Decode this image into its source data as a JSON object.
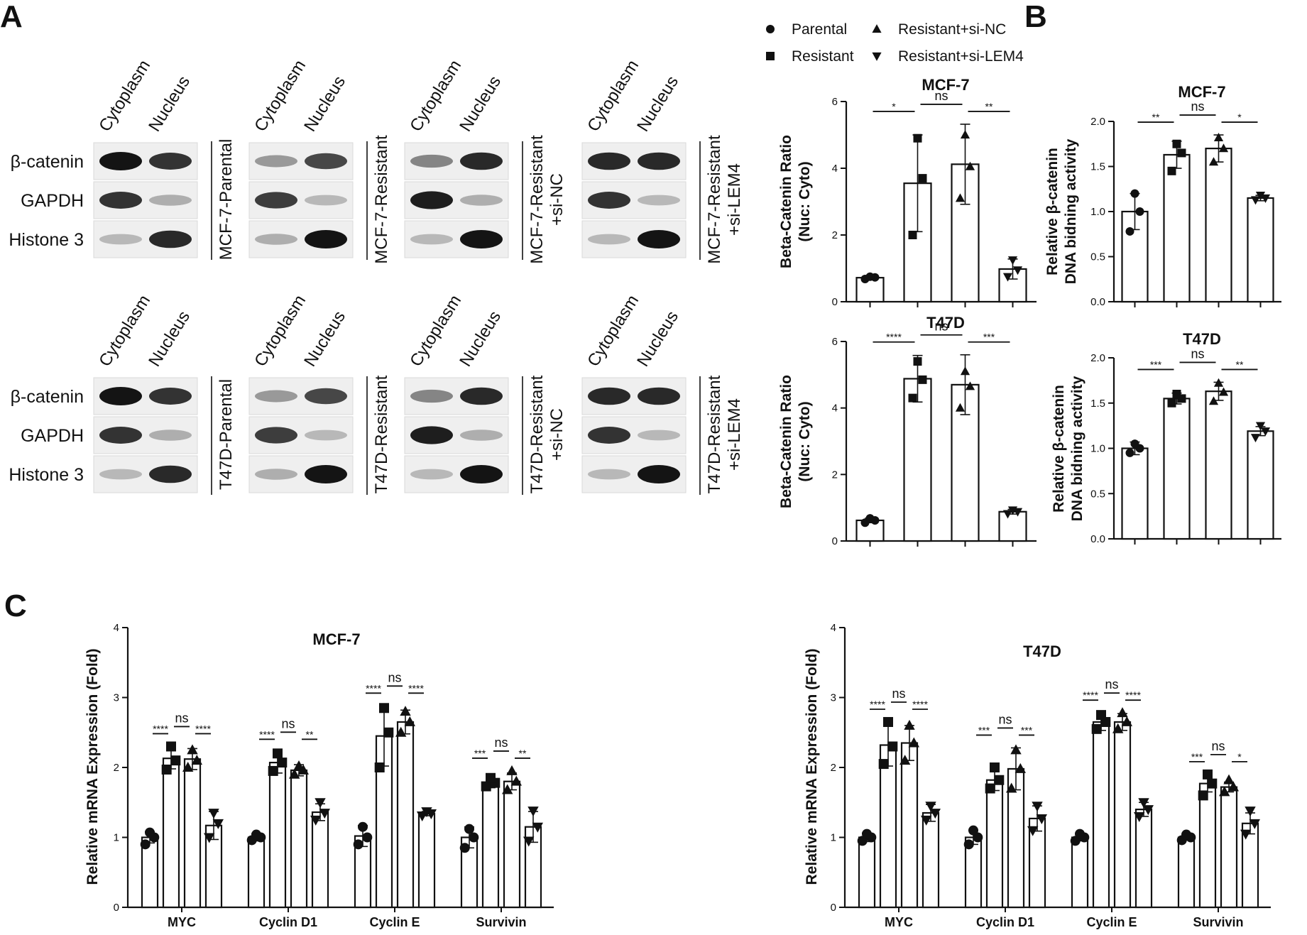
{
  "panels": {
    "a": "A",
    "b": "B",
    "c": "C"
  },
  "blot": {
    "lanes": [
      "Cytoplasm",
      "Nucleus"
    ],
    "rows": [
      "β-catenin",
      "GAPDH",
      "Histone 3"
    ],
    "mcf7_conditions": [
      "MCF-7-Parental",
      "MCF-7-Resistant",
      "MCF-7-Resistant\n+si-NC",
      "MCF-7-Resistant\n+si-LEM4"
    ],
    "t47d_conditions": [
      "T47D-Parental",
      "T47D-Resistant",
      "T47D-Resistant\n+si-NC",
      "T47D-Resistant\n+si-LEM4"
    ]
  },
  "legend": [
    {
      "label": "Parental",
      "marker": "circle"
    },
    {
      "label": "Resistant+si-NC",
      "marker": "triangle-up"
    },
    {
      "label": "Resistant",
      "marker": "square"
    },
    {
      "label": "Resistant+si-LEM4",
      "marker": "triangle-down"
    }
  ],
  "chart_data": [
    {
      "type": "bar",
      "id": "a_mcf7",
      "title": "MCF-7",
      "ylabel": "Beta-Catenin Ratio\n(Nuc: Cyto)",
      "ylim": [
        0,
        6
      ],
      "yticks": [
        "0",
        "2",
        "4",
        "6"
      ],
      "groups": [
        {
          "category": "",
          "values": [
            0.72,
            3.55,
            4.12,
            0.98
          ],
          "errors": [
            0.05,
            1.45,
            1.2,
            0.3
          ],
          "points": [
            [
              0.68,
              0.73,
              0.75
            ],
            [
              2.0,
              3.7,
              4.9
            ],
            [
              3.1,
              4.05,
              5.0
            ],
            [
              0.75,
              0.95,
              1.25
            ]
          ],
          "sig": [
            "*",
            "ns",
            "**"
          ]
        }
      ]
    },
    {
      "type": "bar",
      "id": "b_mcf7",
      "title": "MCF-7",
      "ylabel": "Relative β-catenin\nDNA bidning activity",
      "ylim": [
        0,
        2.0
      ],
      "yticks": [
        "0.0",
        "0.5",
        "1.0",
        "1.5",
        "2.0"
      ],
      "groups": [
        {
          "category": "",
          "values": [
            1.0,
            1.63,
            1.7,
            1.15
          ],
          "errors": [
            0.2,
            0.15,
            0.15,
            0.03
          ],
          "points": [
            [
              0.78,
              1.0,
              1.2
            ],
            [
              1.45,
              1.65,
              1.75
            ],
            [
              1.55,
              1.7,
              1.82
            ],
            [
              1.13,
              1.15,
              1.18
            ]
          ],
          "sig": [
            "**",
            "ns",
            "*"
          ]
        }
      ]
    },
    {
      "type": "bar",
      "id": "a_t47d",
      "title": "T47D",
      "ylabel": "Beta-Catenin Ratio\n(Nuc: Cyto)",
      "ylim": [
        0,
        6
      ],
      "yticks": [
        "0",
        "2",
        "4",
        "6"
      ],
      "groups": [
        {
          "category": "",
          "values": [
            0.62,
            4.88,
            4.7,
            0.88
          ],
          "errors": [
            0.07,
            0.7,
            0.9,
            0.07
          ],
          "points": [
            [
              0.55,
              0.62,
              0.68
            ],
            [
              4.3,
              4.85,
              5.4
            ],
            [
              4.0,
              4.65,
              5.1
            ],
            [
              0.82,
              0.88,
              0.93
            ]
          ],
          "sig": [
            "****",
            "ns",
            "***"
          ]
        }
      ]
    },
    {
      "type": "bar",
      "id": "b_t47d",
      "title": "T47D",
      "ylabel": "Relative β-catenin\nDNA bidning activity",
      "ylim": [
        0,
        2.0
      ],
      "yticks": [
        "0.0",
        "0.5",
        "1.0",
        "1.5",
        "2.0"
      ],
      "groups": [
        {
          "category": "",
          "values": [
            1.0,
            1.55,
            1.63,
            1.19
          ],
          "errors": [
            0.07,
            0.06,
            0.1,
            0.05
          ],
          "points": [
            [
              0.95,
              1.0,
              1.05
            ],
            [
              1.5,
              1.55,
              1.6
            ],
            [
              1.52,
              1.62,
              1.72
            ],
            [
              1.12,
              1.19,
              1.25
            ]
          ],
          "sig": [
            "***",
            "ns",
            "**"
          ]
        }
      ]
    },
    {
      "type": "bar",
      "id": "c_mcf7",
      "title": "MCF-7",
      "ylabel": "Relative mRNA Expression (Fold)",
      "ylim": [
        0,
        4
      ],
      "yticks": [
        "0",
        "1",
        "2",
        "3",
        "4"
      ],
      "groups": [
        {
          "category": "MYC",
          "values": [
            1.0,
            2.13,
            2.12,
            1.17
          ],
          "errors": [
            0.08,
            0.15,
            0.15,
            0.2
          ],
          "points": [
            [
              0.9,
              1.0,
              1.07
            ],
            [
              1.97,
              2.1,
              2.3
            ],
            [
              2.0,
              2.1,
              2.25
            ],
            [
              1.0,
              1.2,
              1.35
            ]
          ],
          "sig": [
            "****",
            "ns",
            "****"
          ]
        },
        {
          "category": "Cyclin D1",
          "values": [
            1.0,
            2.07,
            1.96,
            1.36
          ],
          "errors": [
            0.05,
            0.15,
            0.08,
            0.12
          ],
          "points": [
            [
              0.96,
              1.0,
              1.04
            ],
            [
              1.95,
              2.07,
              2.2
            ],
            [
              1.9,
              1.96,
              2.02
            ],
            [
              1.25,
              1.35,
              1.5
            ]
          ],
          "sig": [
            "****",
            "ns",
            "**"
          ]
        },
        {
          "category": "Cyclin E",
          "values": [
            1.02,
            2.45,
            2.65,
            1.34
          ],
          "errors": [
            0.15,
            0.43,
            0.17,
            0.03
          ],
          "points": [
            [
              0.9,
              1.0,
              1.15
            ],
            [
              2.0,
              2.5,
              2.85
            ],
            [
              2.5,
              2.65,
              2.8
            ],
            [
              1.31,
              1.34,
              1.37
            ]
          ],
          "sig": [
            "****",
            "ns",
            "****"
          ]
        },
        {
          "category": "Survivin",
          "values": [
            1.0,
            1.78,
            1.8,
            1.15
          ],
          "errors": [
            0.15,
            0.07,
            0.12,
            0.22
          ],
          "points": [
            [
              0.85,
              1.0,
              1.12
            ],
            [
              1.73,
              1.78,
              1.85
            ],
            [
              1.68,
              1.8,
              1.95
            ],
            [
              0.95,
              1.15,
              1.38
            ]
          ],
          "sig": [
            "***",
            "ns",
            "**"
          ]
        }
      ]
    },
    {
      "type": "bar",
      "id": "c_t47d",
      "title": "T47D",
      "ylabel": "Relative mRNA Expression (Fold)",
      "ylim": [
        0,
        4
      ],
      "yticks": [
        "0",
        "1",
        "2",
        "3",
        "4"
      ],
      "groups": [
        {
          "category": "MYC",
          "values": [
            1.0,
            2.32,
            2.35,
            1.35
          ],
          "errors": [
            0.06,
            0.3,
            0.25,
            0.12
          ],
          "points": [
            [
              0.95,
              1.0,
              1.05
            ],
            [
              2.05,
              2.3,
              2.65
            ],
            [
              2.1,
              2.35,
              2.6
            ],
            [
              1.25,
              1.35,
              1.45
            ]
          ],
          "sig": [
            "****",
            "ns",
            "****"
          ]
        },
        {
          "category": "Cyclin D1",
          "values": [
            1.0,
            1.82,
            1.98,
            1.27
          ],
          "errors": [
            0.1,
            0.15,
            0.3,
            0.18
          ],
          "points": [
            [
              0.9,
              1.0,
              1.1
            ],
            [
              1.7,
              1.82,
              2.0
            ],
            [
              1.7,
              1.98,
              2.25
            ],
            [
              1.1,
              1.27,
              1.45
            ]
          ],
          "sig": [
            "***",
            "ns",
            "***"
          ]
        },
        {
          "category": "Cyclin E",
          "values": [
            1.0,
            2.65,
            2.65,
            1.4
          ],
          "errors": [
            0.05,
            0.12,
            0.12,
            0.1
          ],
          "points": [
            [
              0.95,
              1.0,
              1.05
            ],
            [
              2.55,
              2.65,
              2.75
            ],
            [
              2.55,
              2.65,
              2.78
            ],
            [
              1.3,
              1.4,
              1.5
            ]
          ],
          "sig": [
            "****",
            "ns",
            "****"
          ]
        },
        {
          "category": "Survivin",
          "values": [
            1.0,
            1.77,
            1.72,
            1.2
          ],
          "errors": [
            0.04,
            0.12,
            0.07,
            0.15
          ],
          "points": [
            [
              0.96,
              1.0,
              1.04
            ],
            [
              1.6,
              1.77,
              1.9
            ],
            [
              1.65,
              1.72,
              1.82
            ],
            [
              1.05,
              1.2,
              1.38
            ]
          ],
          "sig": [
            "***",
            "ns",
            "*"
          ]
        }
      ]
    }
  ]
}
